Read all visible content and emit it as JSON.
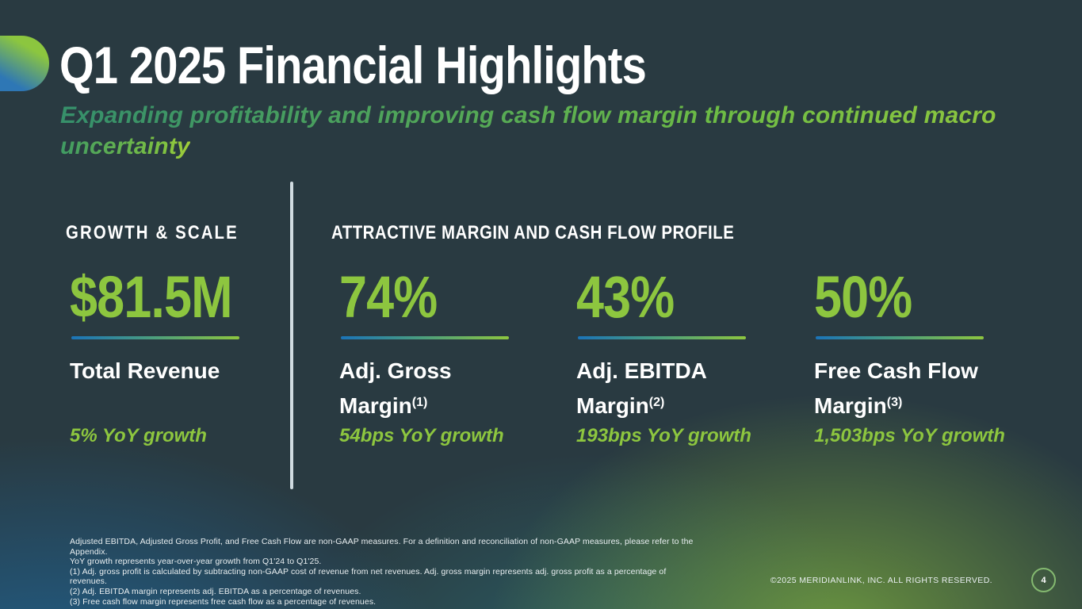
{
  "slide": {
    "title": "Q1 2025 Financial Highlights",
    "subtitle_line1": "Expanding profitability and improving cash flow margin through continued macro",
    "subtitle_line2": "uncertainty",
    "copyright": "©2025 MERIDIANLINK, INC. ALL RIGHTS RESERVED.",
    "page_number": "4"
  },
  "growth_scale": {
    "heading": "GROWTH & SCALE",
    "metric": {
      "value": "$81.5M",
      "label": "Total Revenue",
      "growth": "5% YoY growth"
    }
  },
  "margin_profile": {
    "heading": "ATTRACTIVE MARGIN AND CASH FLOW PROFILE",
    "metrics": [
      {
        "value": "74%",
        "label_line1": "Adj. Gross",
        "label_line2": "Margin",
        "footnote_ref": "(1)",
        "growth": "54bps YoY growth"
      },
      {
        "value": "43%",
        "label_line1": "Adj. EBITDA",
        "label_line2": "Margin",
        "footnote_ref": "(2)",
        "growth": "193bps YoY growth"
      },
      {
        "value": "50%",
        "label_line1": "Free Cash Flow",
        "label_line2": "Margin",
        "footnote_ref": "(3)",
        "growth": "1,503bps YoY growth"
      }
    ]
  },
  "footnotes": {
    "lines": [
      "Adjusted EBITDA, Adjusted Gross Profit, and Free Cash Flow are non-GAAP measures. For a definition and reconciliation of non-GAAP measures, please refer to the Appendix.",
      "YoY growth represents year-over-year growth from Q1'24 to Q1'25.",
      "(1)   Adj. gross profit is calculated by subtracting non-GAAP cost of revenue from net revenues. Adj.  gross margin represents adj. gross profit as a percentage of revenues.",
      "(2)   Adj. EBITDA margin represents adj. EBITDA as a percentage of revenues.",
      "(3)   Free cash flow margin represents free cash flow as a percentage of revenues."
    ]
  },
  "colors": {
    "accent_green": "#8dc63f",
    "accent_blue": "#1b74b8",
    "background": "#293a41",
    "subtitle_gradient_start": "#37906a",
    "subtitle_gradient_end": "#8dc63f",
    "page_badge_ring": "#84b970"
  }
}
